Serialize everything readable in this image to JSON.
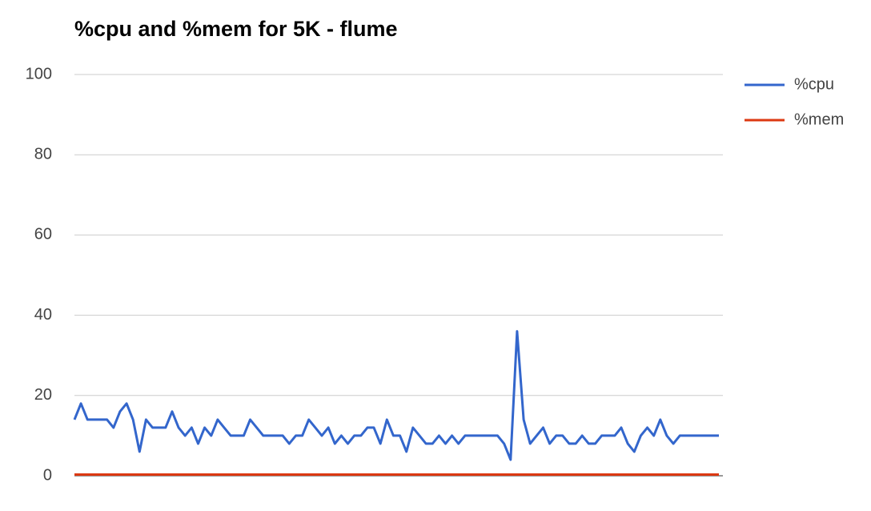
{
  "chart_data": {
    "type": "line",
    "title": "%cpu and %mem for 5K - flume",
    "categories": [
      null,
      null,
      null,
      null,
      null,
      null,
      null,
      null,
      null,
      null,
      null,
      null,
      null,
      null,
      null,
      null,
      null,
      null,
      null,
      null,
      null,
      null,
      null,
      null,
      null,
      null,
      null,
      null,
      null,
      null,
      null,
      null,
      null,
      null,
      null,
      null,
      null,
      null,
      null,
      null,
      null,
      null,
      null,
      null,
      null,
      null,
      null,
      null,
      null,
      null,
      null,
      null,
      null,
      null,
      null,
      null,
      null,
      null,
      null,
      null,
      null,
      null,
      null,
      null,
      null,
      null,
      null,
      null,
      null,
      null,
      null,
      null,
      null,
      null,
      null,
      null,
      null,
      null,
      null,
      null,
      null,
      null,
      null,
      null,
      null,
      null,
      null,
      null,
      null,
      null,
      null,
      null,
      null,
      null,
      null,
      null,
      null,
      null,
      null,
      null
    ],
    "series": [
      {
        "name": "%cpu",
        "color": "#3366cc",
        "values": [
          14,
          18,
          14,
          14,
          14,
          14,
          12,
          16,
          18,
          14,
          6,
          14,
          12,
          12,
          12,
          16,
          12,
          10,
          12,
          8,
          12,
          10,
          14,
          12,
          10,
          10,
          10,
          14,
          12,
          10,
          10,
          10,
          10,
          8,
          10,
          10,
          14,
          12,
          10,
          12,
          8,
          10,
          8,
          10,
          10,
          12,
          12,
          8,
          14,
          10,
          10,
          6,
          12,
          10,
          8,
          8,
          10,
          8,
          10,
          8,
          10,
          10,
          10,
          10,
          10,
          10,
          8,
          4,
          36,
          14,
          8,
          10,
          12,
          8,
          10,
          10,
          8,
          8,
          10,
          8,
          8,
          10,
          10,
          10,
          12,
          8,
          6,
          10,
          12,
          10,
          14,
          10,
          8,
          10,
          10,
          10,
          10,
          10,
          10,
          10
        ]
      },
      {
        "name": "%mem",
        "color": "#dc3912",
        "values": [
          0.3,
          0.3,
          0.3,
          0.3,
          0.3,
          0.3,
          0.3,
          0.3,
          0.3,
          0.3,
          0.3,
          0.3,
          0.3,
          0.3,
          0.3,
          0.3,
          0.3,
          0.3,
          0.3,
          0.3,
          0.3,
          0.3,
          0.3,
          0.3,
          0.3,
          0.3,
          0.3,
          0.3,
          0.3,
          0.3,
          0.3,
          0.3,
          0.3,
          0.3,
          0.3,
          0.3,
          0.3,
          0.3,
          0.3,
          0.3,
          0.3,
          0.3,
          0.3,
          0.3,
          0.3,
          0.3,
          0.3,
          0.3,
          0.3,
          0.3,
          0.3,
          0.3,
          0.3,
          0.3,
          0.3,
          0.3,
          0.3,
          0.3,
          0.3,
          0.3,
          0.3,
          0.3,
          0.3,
          0.3,
          0.3,
          0.3,
          0.3,
          0.3,
          0.3,
          0.3,
          0.3,
          0.3,
          0.3,
          0.3,
          0.3,
          0.3,
          0.3,
          0.3,
          0.3,
          0.3,
          0.3,
          0.3,
          0.3,
          0.3,
          0.3,
          0.3,
          0.3,
          0.3,
          0.3,
          0.3,
          0.3,
          0.3,
          0.3,
          0.3,
          0.3,
          0.3,
          0.3,
          0.3,
          0.3,
          0.3
        ]
      }
    ],
    "ylim": [
      0,
      100
    ],
    "yticks": [
      0,
      20,
      40,
      60,
      80,
      100
    ],
    "grid": true,
    "legend": "right"
  }
}
